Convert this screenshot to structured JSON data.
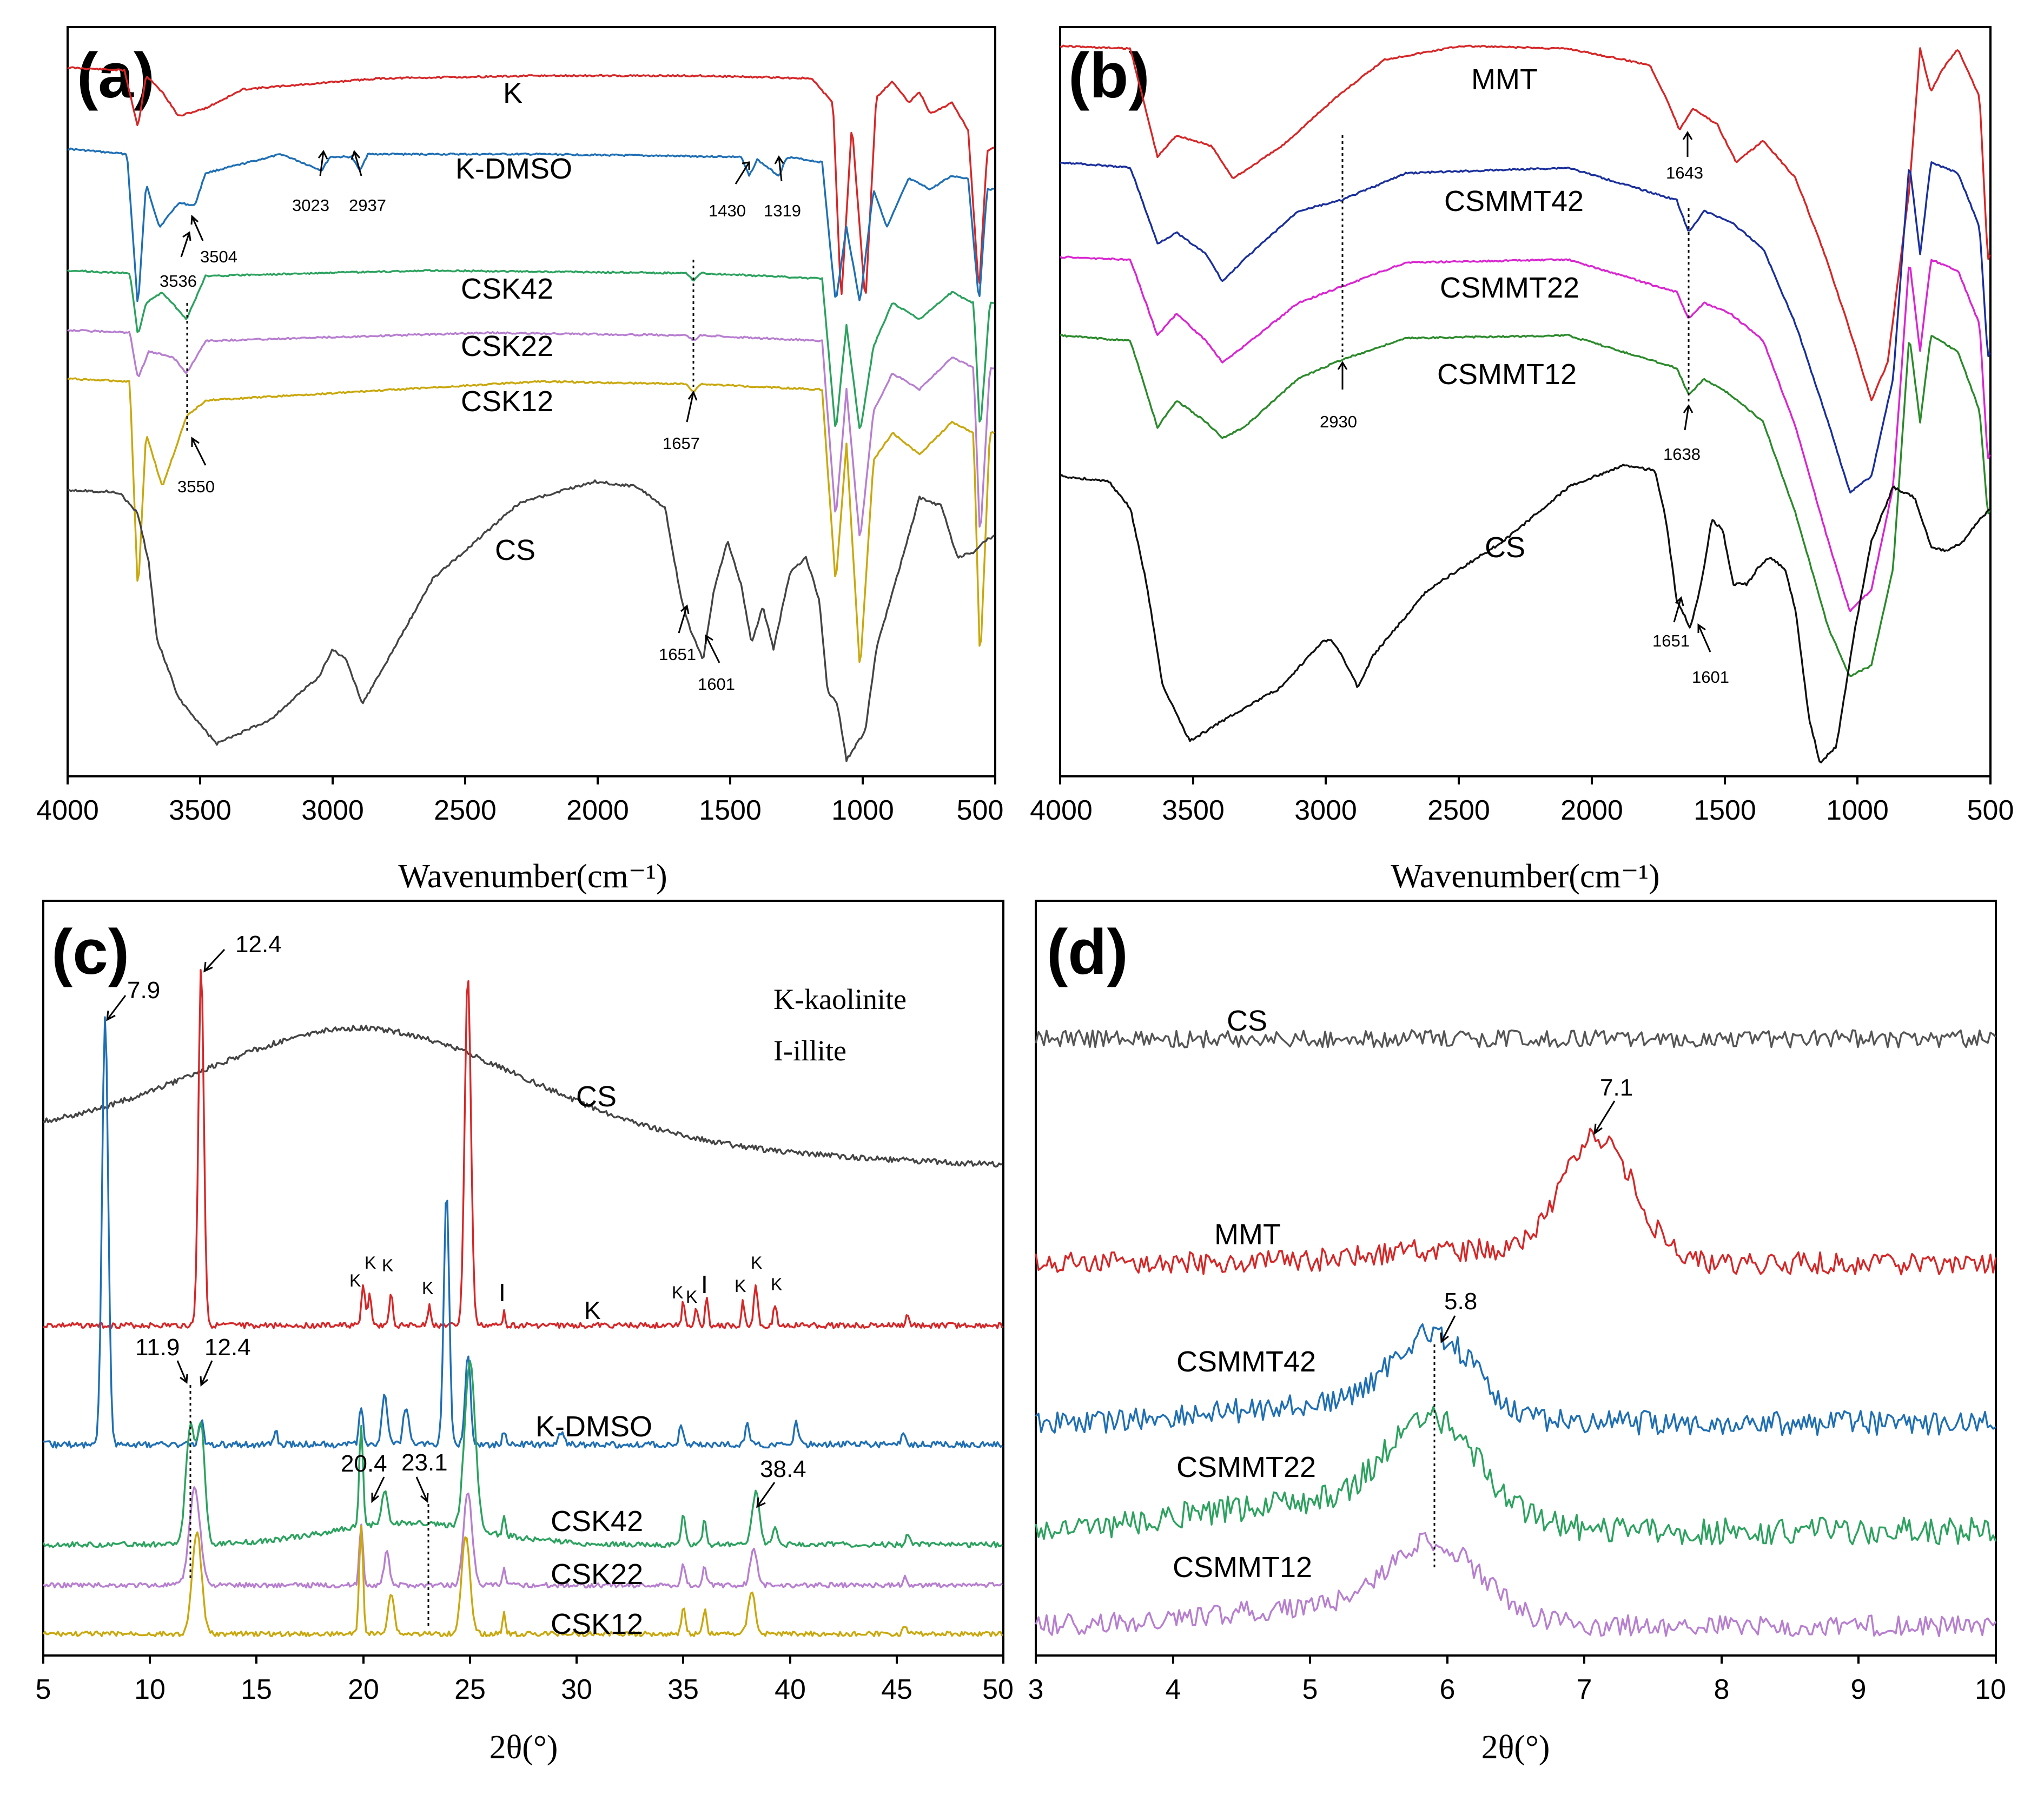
{
  "chart_data": [
    {
      "panel": "(a)",
      "type": "line",
      "title": "",
      "xlabel": "Wavenumber(cm⁻¹)",
      "ylabel": "",
      "xlim": [
        4000,
        500
      ],
      "x_reversed": true,
      "x_ticks": [
        "4000",
        "3500",
        "3000",
        "2500",
        "2000",
        "1500",
        "1000",
        "500"
      ],
      "series": [
        {
          "name": "K",
          "color": "#d62728"
        },
        {
          "name": "K-DMSO",
          "color": "#1f6fb4"
        },
        {
          "name": "CSK42",
          "color": "#2ca25f"
        },
        {
          "name": "CSK22",
          "color": "#b77fd0"
        },
        {
          "name": "CSK12",
          "color": "#c9a80e"
        },
        {
          "name": "CS",
          "color": "#444444"
        }
      ],
      "annotations": [
        "3023",
        "2937",
        "1430",
        "1319",
        "3504",
        "3536",
        "1657",
        "3550",
        "1651",
        "1601"
      ]
    },
    {
      "panel": "(b)",
      "type": "line",
      "title": "",
      "xlabel": "Wavenumber(cm⁻¹)",
      "ylabel": "",
      "xlim": [
        4000,
        500
      ],
      "x_reversed": true,
      "x_ticks": [
        "4000",
        "3500",
        "3000",
        "2500",
        "2000",
        "1500",
        "1000",
        "500"
      ],
      "series": [
        {
          "name": "MMT",
          "color": "#d62728"
        },
        {
          "name": "CSMMT42",
          "color": "#1a2f9c"
        },
        {
          "name": "CSMMT22",
          "color": "#d926d0"
        },
        {
          "name": "CSMMT12",
          "color": "#2b8a2b"
        },
        {
          "name": "CS",
          "color": "#111111"
        }
      ],
      "annotations": [
        "1643",
        "2930",
        "1638",
        "1651",
        "1601"
      ]
    },
    {
      "panel": "(c)",
      "type": "line",
      "title": "",
      "xlabel": "2θ(°)",
      "ylabel": "",
      "xlim": [
        5,
        50
      ],
      "x_ticks": [
        "5",
        "10",
        "15",
        "20",
        "25",
        "30",
        "35",
        "40",
        "45",
        "50"
      ],
      "legend": [
        "K-kaolinite",
        "I-illite"
      ],
      "series": [
        {
          "name": "CS",
          "color": "#444444"
        },
        {
          "name": "K",
          "color": "#d62728"
        },
        {
          "name": "K-DMSO",
          "color": "#1f6fb4"
        },
        {
          "name": "CSK42",
          "color": "#2ca25f"
        },
        {
          "name": "CSK22",
          "color": "#b77fd0"
        },
        {
          "name": "CSK12",
          "color": "#c9a80e"
        }
      ],
      "peak_labels": [
        "7.9",
        "12.4",
        "11.9",
        "12.4",
        "20.4",
        "23.1",
        "38.4"
      ],
      "phase_marks": {
        "kaolinite": "K",
        "illite": "I"
      }
    },
    {
      "panel": "(d)",
      "type": "line",
      "title": "",
      "xlabel": "2θ(°)",
      "ylabel": "",
      "xlim": [
        3,
        10
      ],
      "x_ticks": [
        "3",
        "4",
        "5",
        "6",
        "7",
        "8",
        "9",
        "10"
      ],
      "series": [
        {
          "name": "CS",
          "color": "#555555"
        },
        {
          "name": "MMT",
          "color": "#d62728"
        },
        {
          "name": "CSMMT42",
          "color": "#1f6fb4"
        },
        {
          "name": "CSMMT22",
          "color": "#2ca25f"
        },
        {
          "name": "CSMMT12",
          "color": "#b77fd0"
        }
      ],
      "peak_labels": [
        "7.1",
        "5.8"
      ]
    }
  ]
}
